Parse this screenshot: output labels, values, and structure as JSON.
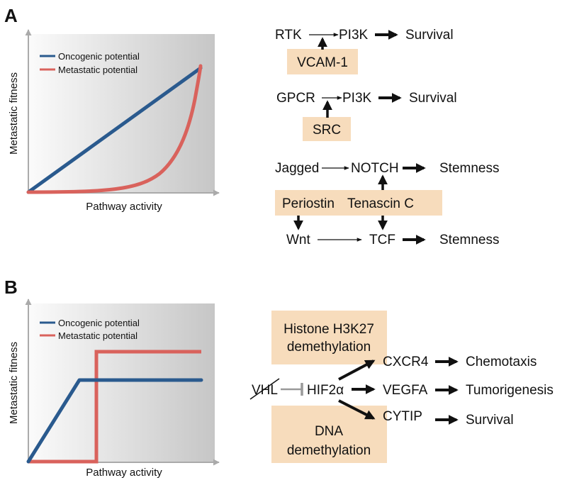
{
  "panel_a": {
    "letter": "A",
    "chart": {
      "type": "line",
      "xlabel": "Pathway activity",
      "ylabel": "Metastatic fitness",
      "legend": [
        "Oncogenic potential",
        "Metastatic potential"
      ],
      "colors": {
        "oncogenic": "#2a5a8e",
        "metastatic": "#d9625c"
      }
    },
    "pathways": {
      "rtk": "RTK",
      "pi3k_1": "PI3K",
      "survival_1": "Survival",
      "vcam1": "VCAM-1",
      "gpcr": "GPCR",
      "pi3k_2": "PI3K",
      "survival_2": "Survival",
      "src": "SRC",
      "jagged": "Jagged",
      "notch": "NOTCH",
      "stemness_1": "Stemness",
      "periostin": "Periostin",
      "tenascin": "Tenascin C",
      "wnt": "Wnt",
      "tcf": "TCF",
      "stemness_2": "Stemness"
    }
  },
  "panel_b": {
    "letter": "B",
    "chart": {
      "type": "line",
      "xlabel": "Pathway activity",
      "ylabel": "Metastatic fitness",
      "legend": [
        "Oncogenic potential",
        "Metastatic potential"
      ],
      "colors": {
        "oncogenic": "#2a5a8e",
        "metastatic": "#d9625c"
      }
    },
    "pathways": {
      "histone_line1": "Histone H3K27",
      "histone_line2": "demethylation",
      "dna_line1": "DNA",
      "dna_line2": "demethylation",
      "vhl": "VHL",
      "hif2a": "HIF2α",
      "cxcr4": "CXCR4",
      "chemotaxis": "Chemotaxis",
      "vegfa": "VEGFA",
      "tumorigenesis": "Tumorigenesis",
      "cytip": "CYTIP",
      "survival": "Survival"
    }
  }
}
